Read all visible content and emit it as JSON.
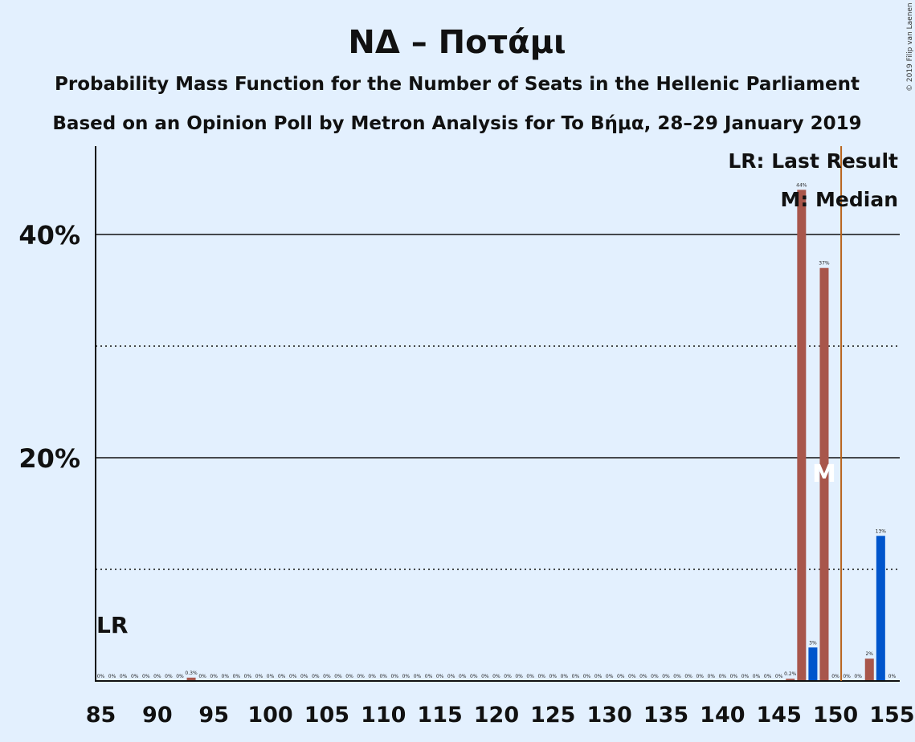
{
  "title": "ΝΔ – Ποτάμι",
  "subtitle1": "Probability Mass Function for the Number of Seats in the Hellenic Parliament",
  "subtitle2": "Based on an Opinion Poll by Metron Analysis for To Βήμα, 28–29 January 2019",
  "copyright": "© 2019 Filip van Laenen",
  "legend": {
    "last_result": "LR: Last Result",
    "median": "M: Median"
  },
  "lr_label": "LR",
  "median_marker": "M",
  "colors": {
    "background": "#e3f0fe",
    "bar_primary": "#a8564b",
    "bar_secondary": "#0055cc",
    "last_result_line": "#b8641c"
  },
  "chart_data": {
    "type": "bar",
    "x": [
      85,
      86,
      87,
      88,
      89,
      90,
      91,
      92,
      93,
      94,
      95,
      96,
      97,
      98,
      99,
      100,
      101,
      102,
      103,
      104,
      105,
      106,
      107,
      108,
      109,
      110,
      111,
      112,
      113,
      114,
      115,
      116,
      117,
      118,
      119,
      120,
      121,
      122,
      123,
      124,
      125,
      126,
      127,
      128,
      129,
      130,
      131,
      132,
      133,
      134,
      135,
      136,
      137,
      138,
      139,
      140,
      141,
      142,
      143,
      144,
      145,
      146,
      147,
      148,
      149,
      150,
      151,
      152,
      153,
      154,
      155
    ],
    "values": [
      0,
      0,
      0,
      0,
      0,
      0,
      0,
      0,
      0.3,
      0,
      0,
      0,
      0,
      0,
      0,
      0,
      0,
      0,
      0,
      0,
      0,
      0,
      0,
      0,
      0,
      0,
      0,
      0,
      0,
      0,
      0,
      0,
      0,
      0,
      0,
      0,
      0,
      0,
      0,
      0,
      0,
      0,
      0,
      0,
      0,
      0,
      0,
      0,
      0,
      0,
      0,
      0,
      0,
      0,
      0,
      0,
      0,
      0,
      0,
      0,
      0,
      0.2,
      44,
      3,
      37,
      0,
      0,
      0,
      2,
      13,
      0
    ],
    "labels": [
      "0%",
      "0%",
      "0%",
      "0%",
      "0%",
      "0%",
      "0%",
      "0%",
      "0.3%",
      "0%",
      "0%",
      "0%",
      "0%",
      "0%",
      "0%",
      "0%",
      "0%",
      "0%",
      "0%",
      "0%",
      "0%",
      "0%",
      "0%",
      "0%",
      "0%",
      "0%",
      "0%",
      "0%",
      "0%",
      "0%",
      "0%",
      "0%",
      "0%",
      "0%",
      "0%",
      "0%",
      "0%",
      "0%",
      "0%",
      "0%",
      "0%",
      "0%",
      "0%",
      "0%",
      "0%",
      "0%",
      "0%",
      "0%",
      "0%",
      "0%",
      "0%",
      "0%",
      "0%",
      "0%",
      "0%",
      "0%",
      "0%",
      "0%",
      "0%",
      "0%",
      "0%",
      "0.2%",
      "44%",
      "3%",
      "37%",
      "0%",
      "0%",
      "0%",
      "2%",
      "13%",
      "0%"
    ],
    "bar_colors": [
      "#a8564b",
      "#a8564b",
      "#a8564b",
      "#a8564b",
      "#a8564b",
      "#a8564b",
      "#a8564b",
      "#a8564b",
      "#a8564b",
      "#a8564b",
      "#a8564b",
      "#a8564b",
      "#a8564b",
      "#a8564b",
      "#a8564b",
      "#a8564b",
      "#a8564b",
      "#a8564b",
      "#a8564b",
      "#a8564b",
      "#a8564b",
      "#a8564b",
      "#a8564b",
      "#a8564b",
      "#a8564b",
      "#a8564b",
      "#a8564b",
      "#a8564b",
      "#a8564b",
      "#a8564b",
      "#a8564b",
      "#a8564b",
      "#a8564b",
      "#a8564b",
      "#a8564b",
      "#a8564b",
      "#a8564b",
      "#a8564b",
      "#a8564b",
      "#a8564b",
      "#a8564b",
      "#a8564b",
      "#a8564b",
      "#a8564b",
      "#a8564b",
      "#a8564b",
      "#a8564b",
      "#a8564b",
      "#a8564b",
      "#a8564b",
      "#a8564b",
      "#a8564b",
      "#a8564b",
      "#a8564b",
      "#a8564b",
      "#a8564b",
      "#a8564b",
      "#a8564b",
      "#a8564b",
      "#a8564b",
      "#a8564b",
      "#a8564b",
      "#a8564b",
      "#0055cc",
      "#a8564b",
      "#a8564b",
      "#a8564b",
      "#a8564b",
      "#a8564b",
      "#0055cc",
      "#a8564b"
    ],
    "xticks": [
      85,
      90,
      95,
      100,
      105,
      110,
      115,
      120,
      125,
      130,
      135,
      140,
      145,
      150,
      155
    ],
    "xtick_labels": [
      "85",
      "90",
      "95",
      "100",
      "105",
      "110",
      "115",
      "120",
      "125",
      "130",
      "135",
      "140",
      "145",
      "150",
      "155"
    ],
    "yticks_major": [
      20,
      40
    ],
    "ytick_labels": [
      "20%",
      "40%"
    ],
    "yticks_minor": [
      10,
      30
    ],
    "ylim": [
      0,
      48
    ],
    "xlim": [
      85,
      156
    ],
    "last_result": 150.5,
    "median": 149,
    "lr_label_at": 85
  }
}
